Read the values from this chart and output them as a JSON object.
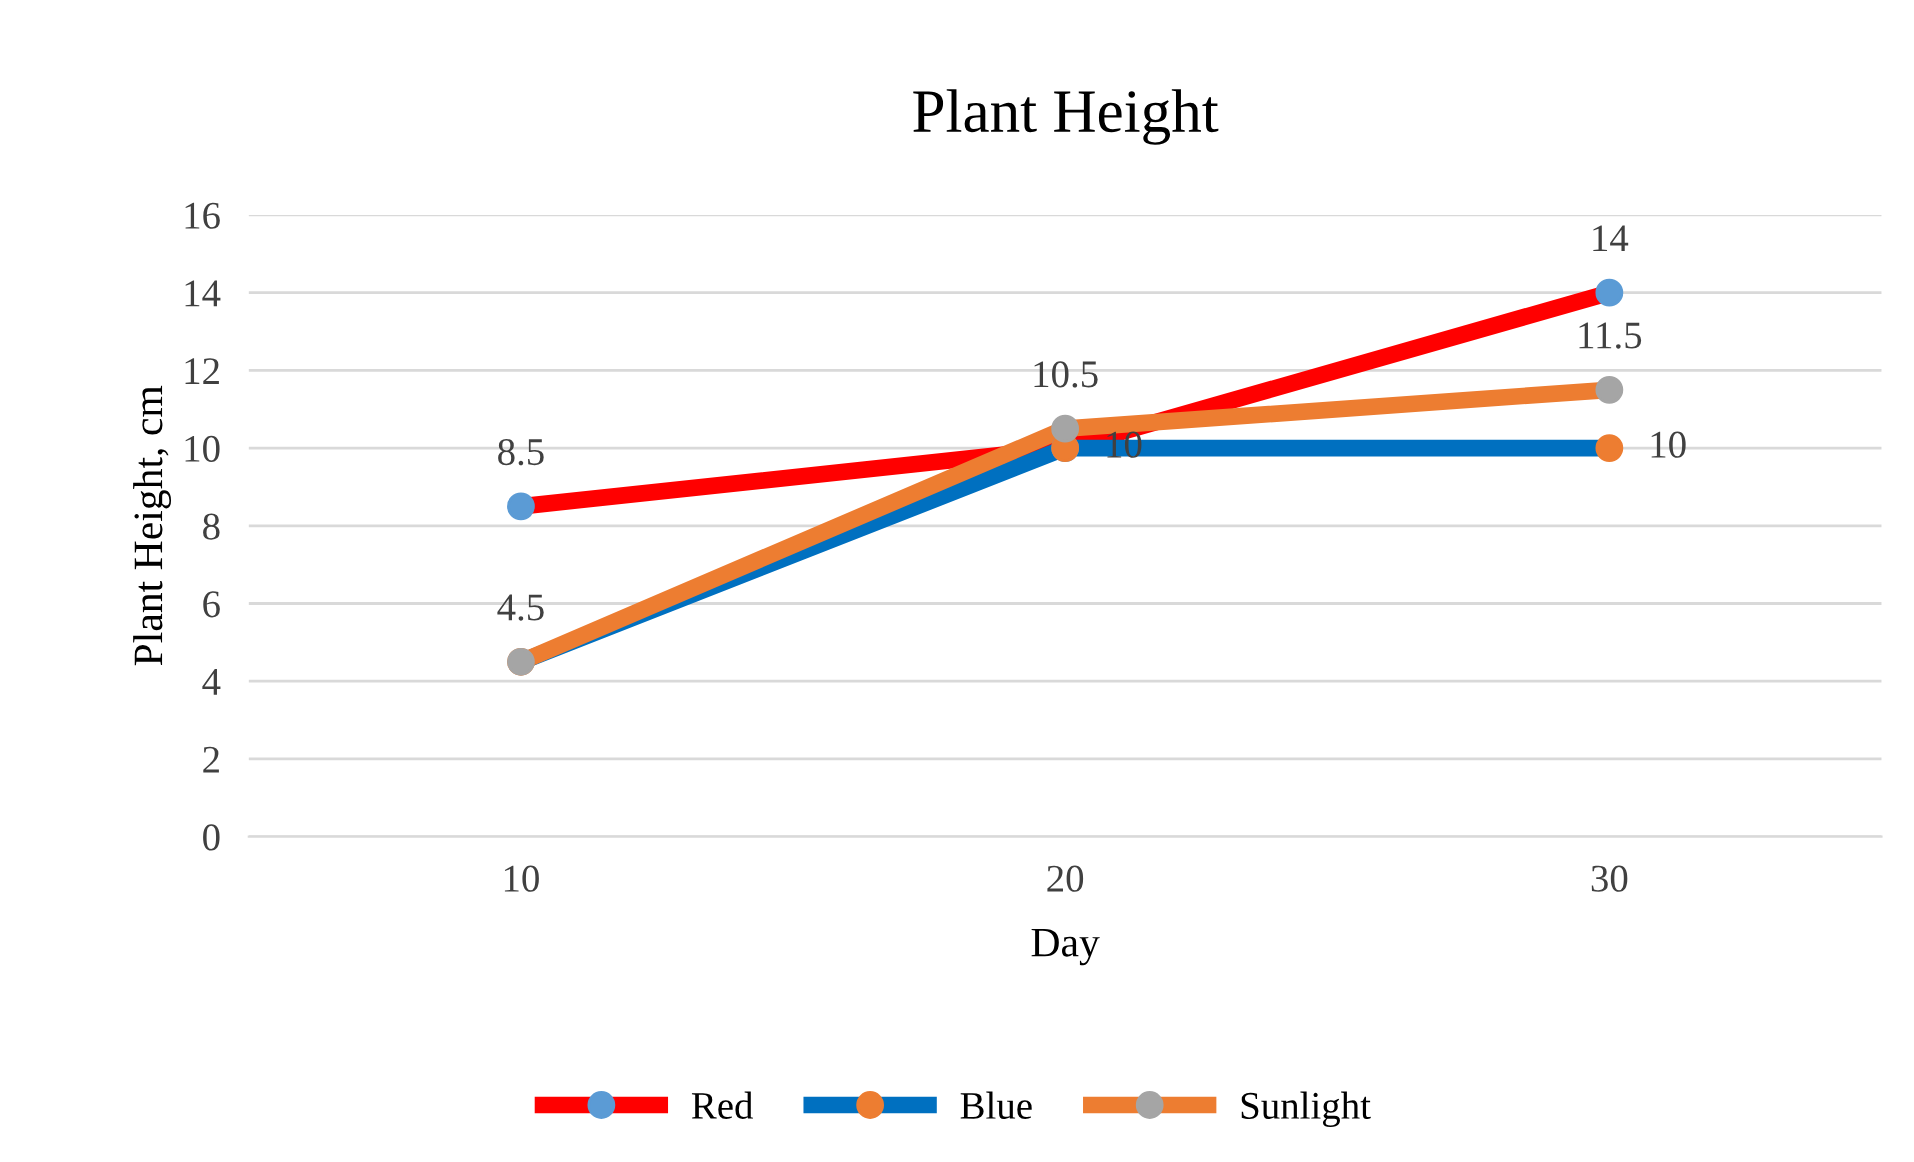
{
  "chart_data": {
    "type": "line",
    "title": "Plant Height",
    "xlabel": "Day",
    "ylabel": "Plant Height, cm",
    "categories": [
      "10",
      "20",
      "30"
    ],
    "series": [
      {
        "name": "Red",
        "color": "#ff0000",
        "colors": [
          "#5b9bd5",
          "#5b9bd5",
          "#5b9bd5"
        ],
        "values": [
          8.5,
          10,
          14
        ],
        "value_labels": [
          "8.5",
          "10",
          "14"
        ]
      },
      {
        "name": "Blue",
        "color": "#0070c0",
        "colors": [
          "#ed7d31",
          "#ed7d31",
          "#ed7d31"
        ],
        "values": [
          4.5,
          10,
          10
        ],
        "value_labels": [
          "4.5",
          null,
          "10"
        ]
      },
      {
        "name": "Sunlight",
        "color": "#ed7d31",
        "colors": [
          "#a5a5a5",
          "#a5a5a5",
          "#a5a5a5"
        ],
        "values": [
          4.5,
          10.5,
          11.5
        ],
        "value_labels": [
          null,
          "10.5",
          "11.5"
        ]
      }
    ],
    "ylim": [
      0,
      16
    ],
    "yticks": [
      0,
      2,
      4,
      6,
      8,
      10,
      12,
      14,
      16
    ],
    "grid": "y",
    "legend": "bottom",
    "marker": "circle",
    "line_style": "solid"
  }
}
